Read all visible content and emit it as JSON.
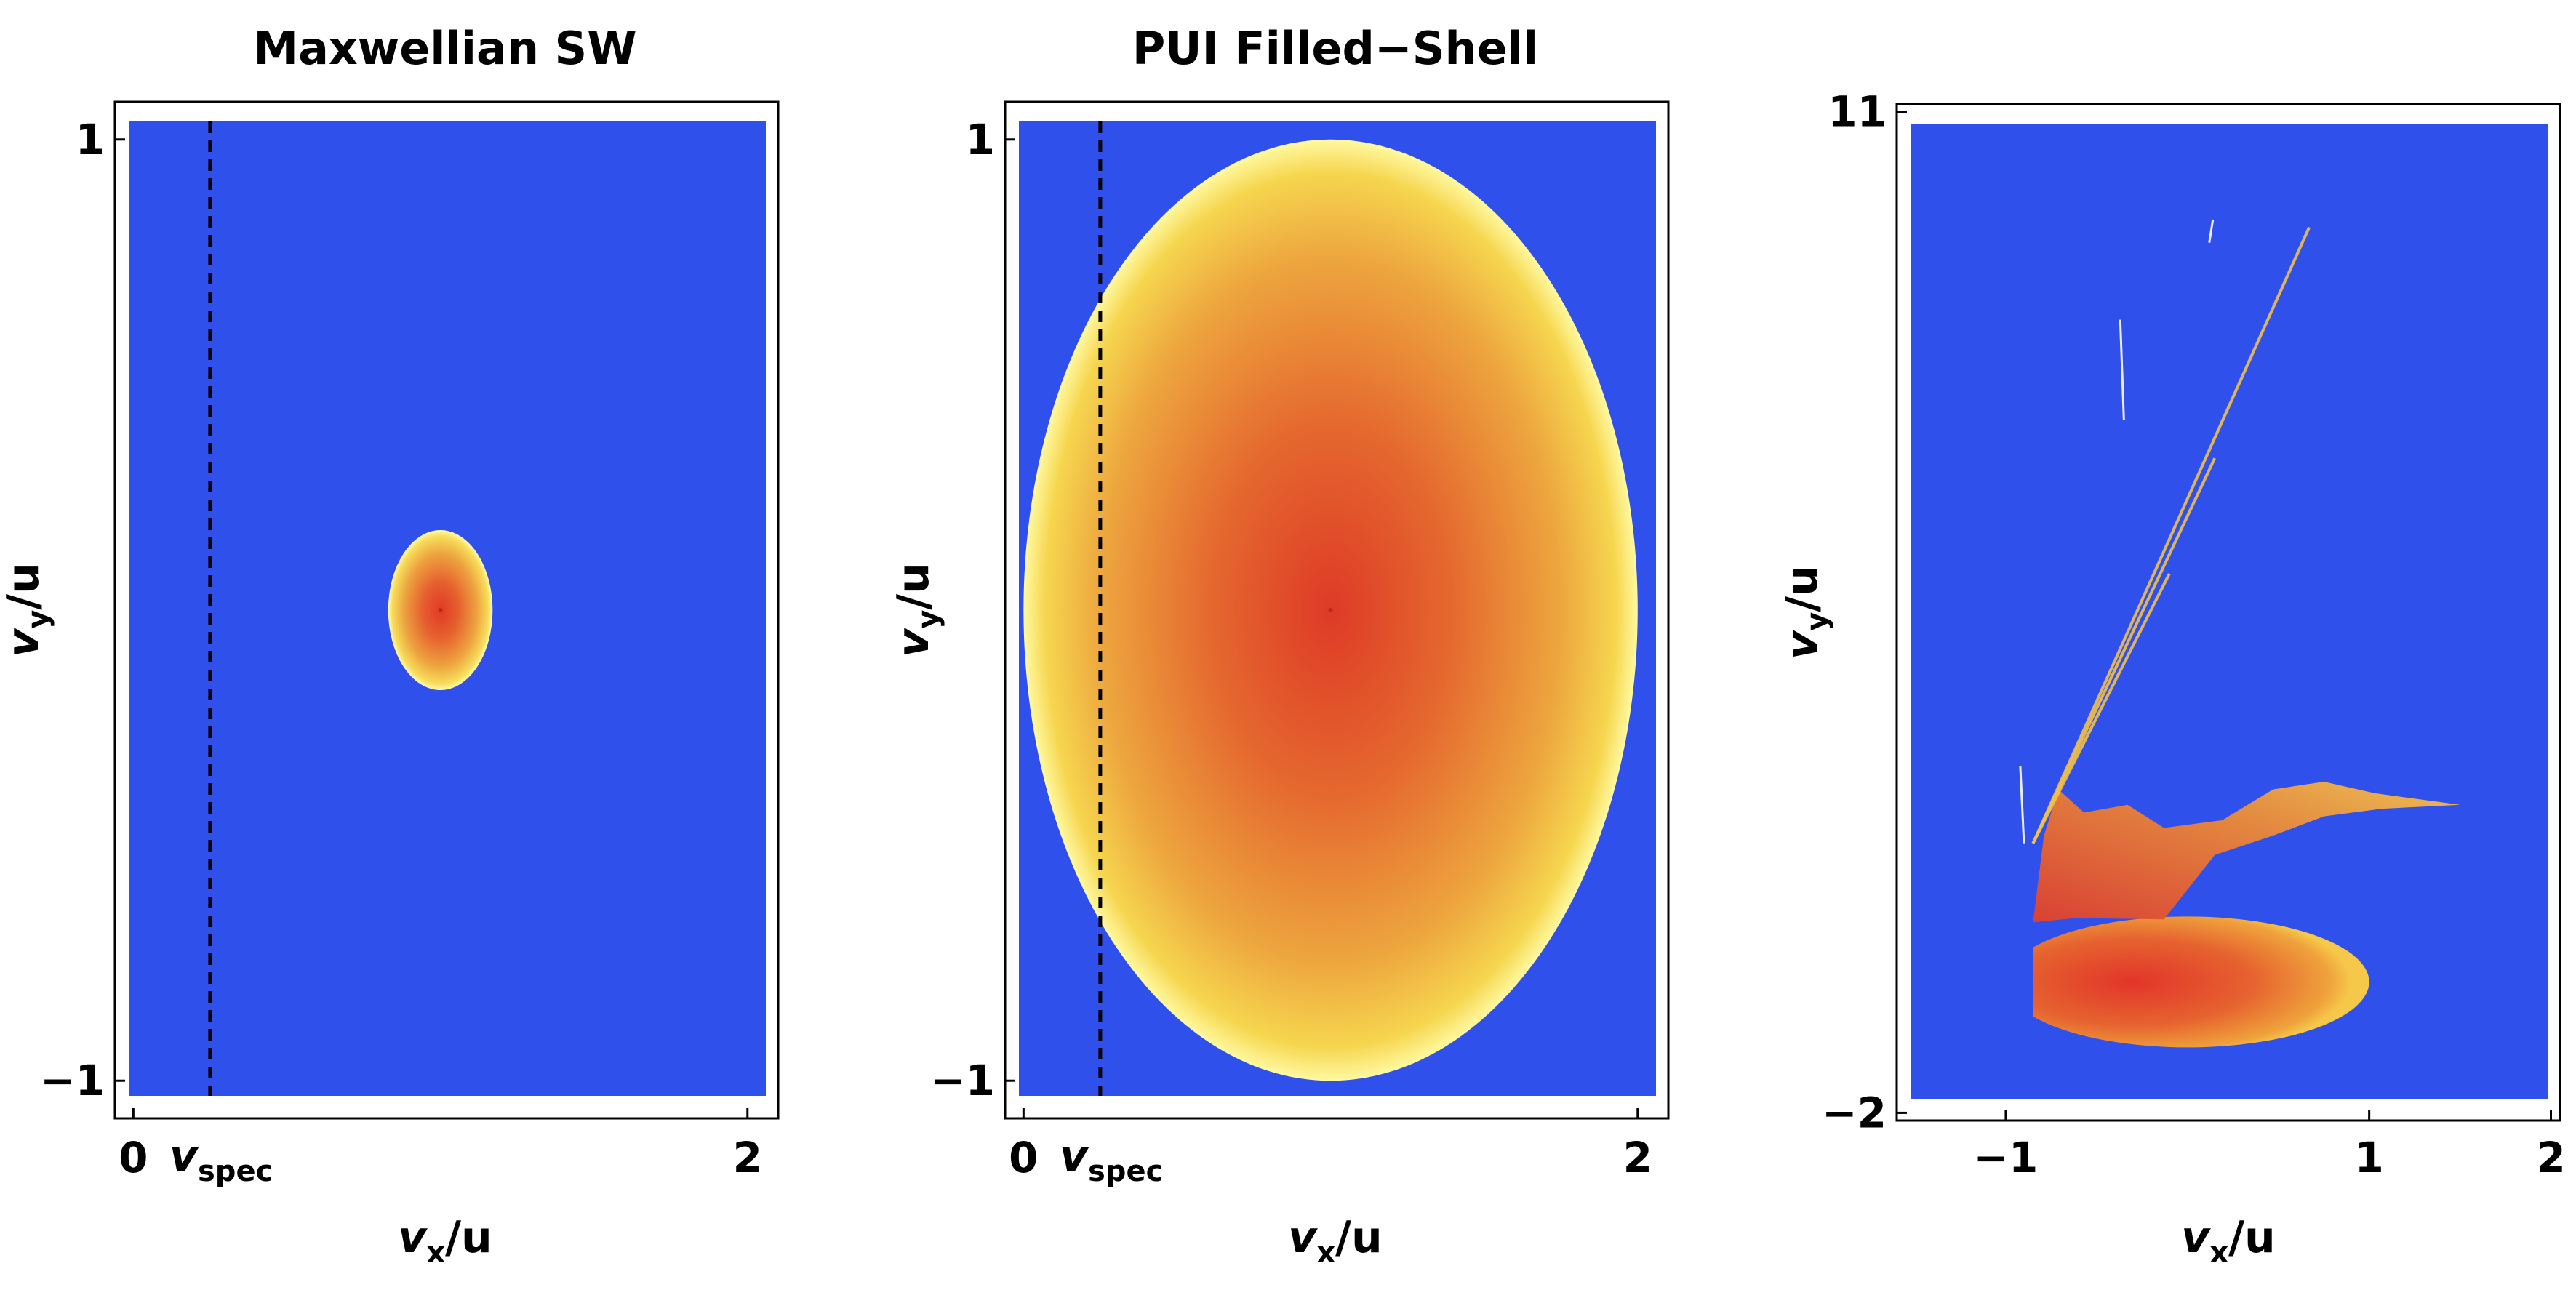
{
  "chart_data": [
    {
      "type": "heatmap",
      "title": "Maxwellian SW",
      "xlabel": "v_x/u",
      "ylabel": "v_y/u",
      "xlabel_parts": {
        "symbol": "v",
        "subscript": "x",
        "rest": "/u"
      },
      "ylabel_parts": {
        "symbol": "v",
        "subscript": "y",
        "rest": "/u"
      },
      "xlim": [
        -0.06,
        2.1
      ],
      "ylim": [
        -1.08,
        1.08
      ],
      "x_ticks": [
        {
          "value": 0,
          "label": "0"
        },
        {
          "value": 2,
          "label": "2"
        }
      ],
      "y_ticks": [
        {
          "value": 1,
          "label": "1"
        },
        {
          "value": -1,
          "label": "−1"
        }
      ],
      "background_color": "#3050ec",
      "distribution": {
        "shape": "ellipse",
        "center": [
          1.0,
          0.0
        ],
        "radii": [
          0.17,
          0.17
        ],
        "core_color": "#e03a25",
        "edge_color": "#fffaa8"
      },
      "marker_line": {
        "x": 0.25,
        "style": "dashed",
        "label_symbol": "v",
        "label_subscript": "spec"
      }
    },
    {
      "type": "heatmap",
      "title": "PUI Filled−Shell",
      "xlabel": "v_x/u",
      "ylabel": "v_y/u",
      "xlabel_parts": {
        "symbol": "v",
        "subscript": "x",
        "rest": "/u"
      },
      "ylabel_parts": {
        "symbol": "v",
        "subscript": "y",
        "rest": "/u"
      },
      "xlim": [
        -0.06,
        2.1
      ],
      "ylim": [
        -1.08,
        1.08
      ],
      "x_ticks": [
        {
          "value": 0,
          "label": "0"
        },
        {
          "value": 2,
          "label": "2"
        }
      ],
      "y_ticks": [
        {
          "value": 1,
          "label": "1"
        },
        {
          "value": -1,
          "label": "−1"
        }
      ],
      "background_color": "#3050ec",
      "distribution": {
        "shape": "ellipse",
        "center": [
          1.0,
          0.0
        ],
        "radii": [
          1.0,
          1.0
        ],
        "core_color": "#e03a25",
        "edge_color": "#fffaa8"
      },
      "marker_line": {
        "x": 0.25,
        "style": "dashed",
        "label_symbol": "v",
        "label_subscript": "spec"
      }
    },
    {
      "type": "heatmap",
      "title": "",
      "xlabel": "v_x/u",
      "ylabel": "v_y/u",
      "xlabel_parts": {
        "symbol": "v",
        "subscript": "x",
        "rest": "/u"
      },
      "ylabel_parts": {
        "symbol": "v",
        "subscript": "y",
        "rest": "/u"
      },
      "xlim": [
        -1.6,
        2.05
      ],
      "ylim": [
        -2.1,
        11.1
      ],
      "x_ticks": [
        {
          "value": -1,
          "label": "−1"
        },
        {
          "value": 1,
          "label": "1"
        },
        {
          "value": 2,
          "label": "2"
        }
      ],
      "y_ticks": [
        {
          "value": 11,
          "label": "11"
        },
        {
          "value": -2,
          "label": "−2"
        }
      ],
      "background_color": "#3050ec",
      "distribution": {
        "shape": "truncated-ellipse",
        "center": [
          0.0,
          -0.3
        ],
        "radii": [
          1.0,
          0.85
        ],
        "cut_x": -0.85,
        "core_color": "#e03a25",
        "edge_color": "#f5b63a",
        "streaks": [
          {
            "from": [
              -0.85,
              1.5
            ],
            "to": [
              0.67,
              9.5
            ]
          },
          {
            "from": [
              -0.85,
              1.5
            ],
            "to": [
              0.15,
              6.5
            ]
          },
          {
            "from": [
              -0.85,
              1.5
            ],
            "to": [
              -0.1,
              5.0
            ]
          },
          {
            "from": [
              -0.9,
              1.5
            ],
            "to": [
              -0.92,
              2.5
            ]
          },
          {
            "from": [
              -0.35,
              7.0
            ],
            "to": [
              -0.37,
              8.3
            ]
          },
          {
            "from": [
              0.12,
              9.3
            ],
            "to": [
              0.14,
              9.6
            ]
          }
        ],
        "plume_tip": [
          1.5,
          2.0
        ]
      },
      "marker_line": null
    }
  ]
}
